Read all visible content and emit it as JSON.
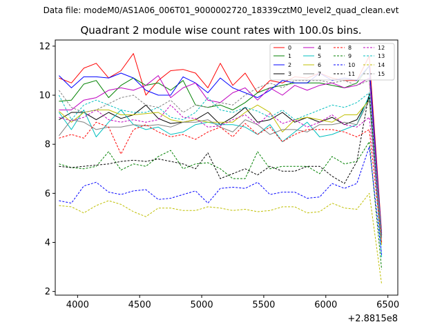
{
  "header": {
    "datafile": "Data file: modeM0/AS1A06_006T01_9000002720_18339cztM0_level2_quad_clean.evt",
    "title": "Quadrant 2 module wise count rates with 100.0s bins."
  },
  "chart_data": {
    "type": "line",
    "x_offset_label": "+2.8815e8",
    "xlim": [
      3820,
      6580
    ],
    "ylim": [
      1.85,
      12.25
    ],
    "xticks": [
      4000,
      4500,
      5000,
      5500,
      6000,
      6500
    ],
    "yticks": [
      2,
      4,
      6,
      8,
      10,
      12
    ],
    "legend_position": "upper right",
    "x": [
      3850,
      3950,
      4050,
      4150,
      4250,
      4350,
      4450,
      4550,
      4650,
      4750,
      4850,
      4950,
      5050,
      5150,
      5250,
      5350,
      5450,
      5550,
      5650,
      5750,
      5850,
      5950,
      6050,
      6150,
      6250,
      6350,
      6450
    ],
    "series": [
      {
        "name": "0",
        "color": "#ff0000",
        "dash": false,
        "values": [
          10.7,
          10.5,
          11.1,
          11.3,
          10.7,
          11.0,
          11.7,
          10.0,
          10.6,
          11.0,
          11.05,
          10.9,
          10.3,
          11.3,
          10.4,
          10.9,
          10.1,
          10.6,
          10.5,
          10.75,
          10.7,
          10.9,
          10.7,
          10.6,
          10.6,
          11.6,
          4.4
        ]
      },
      {
        "name": "1",
        "color": "#008000",
        "dash": false,
        "values": [
          9.75,
          9.8,
          10.45,
          10.6,
          9.9,
          10.4,
          10.7,
          10.4,
          10.5,
          10.2,
          10.6,
          9.6,
          9.5,
          9.6,
          9.4,
          9.7,
          10.1,
          10.3,
          10.4,
          10.5,
          10.5,
          10.5,
          10.4,
          10.3,
          10.5,
          11.2,
          4.3
        ]
      },
      {
        "name": "2",
        "color": "#0000ff",
        "dash": false,
        "values": [
          10.8,
          10.3,
          10.75,
          10.75,
          10.7,
          10.9,
          10.7,
          10.2,
          10.0,
          10.0,
          10.75,
          10.5,
          10.1,
          10.7,
          10.3,
          10.1,
          9.9,
          10.2,
          10.6,
          10.5,
          10.5,
          10.9,
          10.6,
          10.7,
          10.6,
          11.2,
          4.3
        ]
      },
      {
        "name": "3",
        "color": "#000000",
        "dash": false,
        "values": [
          9.0,
          9.3,
          9.3,
          9.0,
          9.3,
          9.05,
          9.2,
          9.6,
          9.05,
          8.85,
          8.9,
          9.0,
          9.3,
          8.8,
          9.1,
          9.5,
          8.9,
          9.0,
          9.3,
          8.9,
          9.1,
          8.9,
          9.1,
          8.8,
          9.0,
          9.9,
          4.2
        ]
      },
      {
        "name": "4",
        "color": "#bf00bf",
        "dash": false,
        "values": [
          9.4,
          9.4,
          9.8,
          9.9,
          10.2,
          10.3,
          10.2,
          10.4,
          10.8,
          9.9,
          10.3,
          10.5,
          9.8,
          9.7,
          10.1,
          10.3,
          9.8,
          10.3,
          10.0,
          10.4,
          10.2,
          10.4,
          10.5,
          10.3,
          10.4,
          10.7,
          4.3
        ]
      },
      {
        "name": "5",
        "color": "#00bfbf",
        "dash": false,
        "values": [
          9.3,
          8.6,
          9.4,
          8.3,
          8.9,
          9.4,
          8.8,
          8.6,
          8.7,
          8.4,
          8.5,
          8.8,
          8.9,
          8.8,
          8.8,
          8.7,
          8.4,
          8.8,
          8.1,
          8.5,
          8.9,
          8.3,
          8.4,
          8.6,
          8.8,
          10.0,
          3.4
        ]
      },
      {
        "name": "6",
        "color": "#bfbf00",
        "dash": false,
        "values": [
          9.35,
          8.9,
          9.3,
          9.4,
          9.4,
          9.2,
          9.2,
          9.25,
          9.3,
          9.0,
          8.9,
          9.0,
          8.9,
          8.9,
          8.9,
          9.3,
          9.6,
          9.3,
          8.5,
          9.0,
          9.1,
          9.0,
          8.9,
          9.2,
          9.2,
          9.8,
          3.9
        ]
      },
      {
        "name": "7",
        "color": "#808080",
        "dash": false,
        "values": [
          8.35,
          9.0,
          8.9,
          8.6,
          8.7,
          8.7,
          8.8,
          8.75,
          8.8,
          8.7,
          8.9,
          8.9,
          9.0,
          8.7,
          8.5,
          9.0,
          8.8,
          8.4,
          8.6,
          8.6,
          8.5,
          8.8,
          8.8,
          8.9,
          8.8,
          9.8,
          4.0
        ]
      },
      {
        "name": "8",
        "color": "#ff0000",
        "dash": true,
        "values": [
          8.25,
          8.4,
          8.25,
          8.9,
          8.7,
          7.6,
          8.6,
          8.8,
          8.5,
          8.3,
          8.4,
          8.2,
          8.5,
          8.7,
          8.3,
          8.85,
          8.4,
          8.7,
          8.1,
          8.4,
          8.6,
          8.6,
          8.6,
          8.5,
          8.3,
          8.6,
          4.0
        ]
      },
      {
        "name": "9",
        "color": "#008000",
        "dash": true,
        "values": [
          7.2,
          7.05,
          7.0,
          7.1,
          7.7,
          6.95,
          7.2,
          7.1,
          7.5,
          7.75,
          7.0,
          7.2,
          7.25,
          7.0,
          6.6,
          6.6,
          7.7,
          7.0,
          7.1,
          7.1,
          7.1,
          6.8,
          7.5,
          7.2,
          7.3,
          8.1,
          2.9
        ]
      },
      {
        "name": "10",
        "color": "#0000ff",
        "dash": true,
        "values": [
          5.7,
          5.6,
          6.3,
          6.45,
          6.05,
          5.95,
          6.1,
          6.15,
          5.75,
          5.8,
          5.95,
          6.1,
          5.6,
          6.2,
          6.25,
          6.2,
          6.45,
          5.95,
          6.05,
          6.05,
          5.8,
          5.85,
          6.4,
          6.2,
          6.4,
          7.9,
          3.5
        ]
      },
      {
        "name": "11",
        "color": "#000000",
        "dash": true,
        "values": [
          7.1,
          7.05,
          7.1,
          7.15,
          7.2,
          7.3,
          7.35,
          7.3,
          7.4,
          7.3,
          7.2,
          7.0,
          7.65,
          6.6,
          6.8,
          7.0,
          6.75,
          7.1,
          6.9,
          6.9,
          7.1,
          7.1,
          6.7,
          6.4,
          7.3,
          10.1,
          4.3
        ]
      },
      {
        "name": "12",
        "color": "#bf00bf",
        "dash": true,
        "values": [
          9.1,
          8.95,
          9.1,
          9.4,
          9.0,
          8.9,
          9.0,
          8.9,
          9.0,
          9.6,
          9.1,
          9.05,
          8.7,
          8.75,
          9.0,
          9.2,
          8.8,
          9.25,
          8.85,
          9.0,
          8.7,
          8.9,
          9.2,
          8.8,
          8.7,
          9.1,
          4.4
        ]
      },
      {
        "name": "13",
        "color": "#00bfbf",
        "dash": true,
        "values": [
          10.0,
          9.0,
          9.6,
          9.8,
          9.6,
          9.4,
          9.3,
          9.3,
          9.5,
          9.1,
          9.0,
          9.3,
          9.9,
          9.4,
          9.3,
          9.5,
          9.35,
          9.1,
          9.4,
          9.0,
          9.2,
          9.4,
          9.6,
          9.5,
          9.7,
          10.1,
          4.2
        ]
      },
      {
        "name": "14",
        "color": "#bfbf00",
        "dash": true,
        "values": [
          5.5,
          5.45,
          5.2,
          5.5,
          5.7,
          5.55,
          5.25,
          5.05,
          5.4,
          5.4,
          5.3,
          5.3,
          5.45,
          5.4,
          5.3,
          5.35,
          5.25,
          5.3,
          5.45,
          5.45,
          5.2,
          5.25,
          5.6,
          5.4,
          5.35,
          6.0,
          2.3
        ]
      },
      {
        "name": "15",
        "color": "#808080",
        "dash": true,
        "values": [
          10.2,
          9.5,
          9.3,
          9.4,
          9.65,
          9.9,
          10.0,
          9.6,
          9.5,
          9.8,
          9.3,
          9.6,
          9.5,
          9.7,
          9.6,
          10.0,
          10.3,
          10.5,
          10.3,
          10.6,
          10.6,
          10.6,
          10.5,
          10.6,
          10.4,
          10.6,
          4.2
        ]
      }
    ]
  }
}
